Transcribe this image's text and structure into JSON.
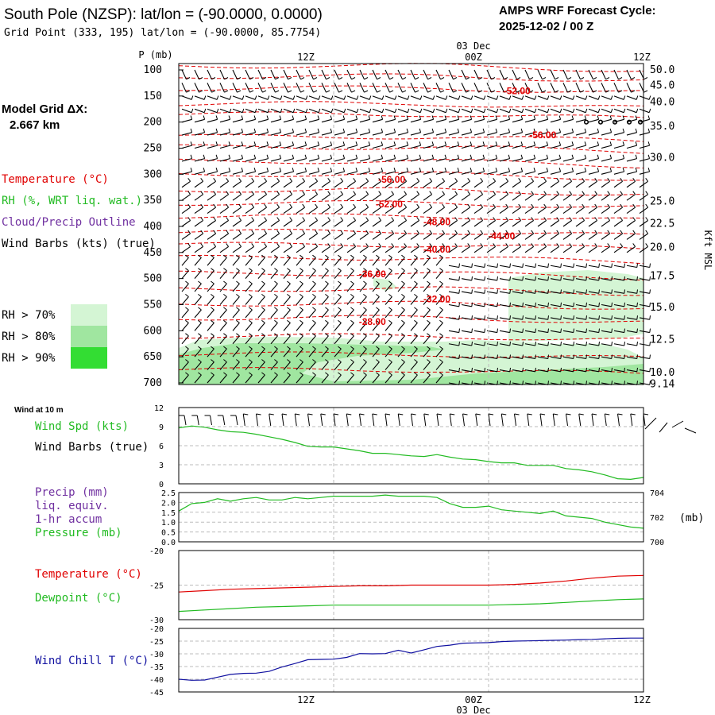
{
  "header": {
    "title": "South Pole (NZSP):  lat/lon = (-90.0000, 0.0000)",
    "subtitle": "Grid Point (333, 195) lat/lon = (-90.0000, 85.7754)",
    "cycle_title": "AMPS WRF Forecast Cycle:",
    "cycle_value": "2025-12-02 / 00  Z",
    "model_grid_label": "Model Grid ΔX:",
    "model_grid_value": "2.667 km"
  },
  "time_axis": {
    "top_date": "03 Dec",
    "bottom_date": "03 Dec",
    "ticks": [
      {
        "hour": 12,
        "label": "12Z"
      },
      {
        "hour": 24,
        "label": "00Z"
      },
      {
        "hour": 36,
        "label": "12Z"
      }
    ],
    "hours_start": 0,
    "hours_end": 36
  },
  "colors": {
    "temperature": "#e00000",
    "rh": "#22bb22",
    "cloud": "#7030a0",
    "wind_chill": "#1010a0",
    "rh70": "#d4f5d4",
    "rh80": "#a0e6a0",
    "rh90": "#33dd33",
    "axis": "#000000"
  },
  "cross_section_legend": {
    "temperature": "Temperature (°C)",
    "rh": "RH (%, WRT liq. wat.)",
    "cloud": "Cloud/Precip Outline",
    "wind": "Wind Barbs (kts) (true)",
    "rh70": "RH > 70%",
    "rh80": "RH > 80%",
    "rh90": "RH > 90%"
  },
  "chart_data": [
    {
      "type": "contour",
      "title": "Vertical time cross-section",
      "ylabel": "P (mb)",
      "y2label": "Kft MSL",
      "pressure_levels": [
        100,
        150,
        200,
        250,
        300,
        350,
        400,
        450,
        500,
        550,
        600,
        650,
        700
      ],
      "height_labels": [
        {
          "p": 100,
          "label": "50.0"
        },
        {
          "p": 130,
          "label": "45.0"
        },
        {
          "p": 162,
          "label": "40.0"
        },
        {
          "p": 208,
          "label": "35.0"
        },
        {
          "p": 268,
          "label": "30.0"
        },
        {
          "p": 352,
          "label": "25.0"
        },
        {
          "p": 395,
          "label": "22.5"
        },
        {
          "p": 440,
          "label": "20.0"
        },
        {
          "p": 495,
          "label": "17.5"
        },
        {
          "p": 555,
          "label": "15.0"
        },
        {
          "p": 617,
          "label": "12.5"
        },
        {
          "p": 680,
          "label": "10.0"
        },
        {
          "p": 702,
          "label": "9.14"
        }
      ],
      "temperature_labels": [
        {
          "hour": 26.2,
          "p": 140,
          "label": "-52.00"
        },
        {
          "hour": 28.2,
          "p": 225,
          "label": "-56.00"
        },
        {
          "hour": 16.5,
          "p": 310,
          "label": "-56.00"
        },
        {
          "hour": 16.3,
          "p": 357,
          "label": "-52.00"
        },
        {
          "hour": 20.0,
          "p": 392,
          "label": "-48.00"
        },
        {
          "hour": 25.0,
          "p": 418,
          "label": "-44.00"
        },
        {
          "hour": 20.0,
          "p": 444,
          "label": "-40.00"
        },
        {
          "hour": 15.0,
          "p": 491,
          "label": "-36.00"
        },
        {
          "hour": 20.0,
          "p": 539,
          "label": "-32.00"
        },
        {
          "hour": 15.0,
          "p": 583,
          "label": "-28.00"
        }
      ]
    },
    {
      "type": "line",
      "title": "Wind at 10 m",
      "label_speed": "Wind Spd (kts)",
      "label_barbs": "Wind Barbs (true)",
      "ylim": [
        0,
        12
      ],
      "yticks": [
        {
          "v": 0,
          "label": "0"
        },
        {
          "v": 3,
          "label": "3"
        },
        {
          "v": 6,
          "label": "6"
        },
        {
          "v": 9,
          "label": "9"
        },
        {
          "v": 12,
          "label": "12"
        }
      ],
      "x": [
        0,
        1,
        2,
        3,
        4,
        5,
        6,
        7,
        8,
        9,
        10,
        11,
        12,
        13,
        14,
        15,
        16,
        17,
        18,
        19,
        20,
        21,
        22,
        23,
        24,
        25,
        26,
        27,
        28,
        29,
        30,
        31,
        32,
        33,
        34,
        35,
        36
      ],
      "values": [
        8.8,
        9.1,
        8.9,
        8.5,
        8.2,
        8.1,
        7.8,
        7.4,
        7.0,
        6.5,
        5.9,
        5.8,
        5.8,
        5.5,
        5.2,
        4.8,
        4.8,
        4.6,
        4.4,
        4.3,
        4.6,
        4.2,
        3.9,
        3.8,
        3.5,
        3.3,
        3.3,
        2.9,
        2.9,
        2.9,
        2.4,
        2.2,
        1.9,
        1.4,
        0.8,
        0.7,
        1.0
      ]
    },
    {
      "type": "line",
      "label_precip": "Precip (mm)",
      "label_liq": "liq. equiv.",
      "label_accum": "1-hr accum",
      "label_pressure": "Pressure (mb)",
      "y2unit": "(mb)",
      "precip_ylim": [
        0,
        2.5
      ],
      "precip_ticks": [
        {
          "v": 0.0,
          "label": "0.0"
        },
        {
          "v": 0.5,
          "label": "0.5"
        },
        {
          "v": 1.0,
          "label": "1.0"
        },
        {
          "v": 1.5,
          "label": "1.5"
        },
        {
          "v": 2.0,
          "label": "2.0"
        },
        {
          "v": 2.5,
          "label": "2.5"
        }
      ],
      "pressure_ylim": [
        700,
        704
      ],
      "pressure_ticks": [
        {
          "v": 700,
          "label": "700"
        },
        {
          "v": 702,
          "label": "702"
        },
        {
          "v": 704,
          "label": "704"
        }
      ],
      "x": [
        0,
        1,
        2,
        3,
        4,
        5,
        6,
        7,
        8,
        9,
        10,
        11,
        12,
        13,
        14,
        15,
        16,
        17,
        18,
        19,
        20,
        21,
        22,
        23,
        24,
        25,
        26,
        27,
        28,
        29,
        30,
        31,
        32,
        33,
        34,
        35,
        36
      ],
      "pressure": [
        702.5,
        703.1,
        703.2,
        703.5,
        703.3,
        703.5,
        703.6,
        703.4,
        703.4,
        703.6,
        703.5,
        703.6,
        703.7,
        703.7,
        703.7,
        703.7,
        703.8,
        703.7,
        703.7,
        703.7,
        703.6,
        703.1,
        702.8,
        702.8,
        702.9,
        702.6,
        702.5,
        702.4,
        702.3,
        702.5,
        702.1,
        702.0,
        701.9,
        701.6,
        701.4,
        701.2,
        701.1
      ]
    },
    {
      "type": "line",
      "label_temperature": "Temperature (°C)",
      "label_dewpoint": "Dewpoint (°C)",
      "ylim": [
        -30,
        -20
      ],
      "yticks": [
        {
          "v": -30,
          "label": "-30"
        },
        {
          "v": -25,
          "label": "-25"
        },
        {
          "v": -20,
          "label": "-20"
        }
      ],
      "x": [
        0,
        2,
        4,
        6,
        8,
        10,
        12,
        14,
        16,
        18,
        20,
        22,
        24,
        26,
        28,
        30,
        32,
        34,
        36
      ],
      "series": [
        {
          "name": "Temperature",
          "values": [
            -26.0,
            -25.8,
            -25.6,
            -25.5,
            -25.4,
            -25.3,
            -25.2,
            -25.1,
            -25.1,
            -25.0,
            -25.0,
            -25.0,
            -25.0,
            -24.9,
            -24.7,
            -24.4,
            -24.0,
            -23.7,
            -23.6
          ]
        },
        {
          "name": "Dewpoint",
          "values": [
            -28.8,
            -28.6,
            -28.4,
            -28.2,
            -28.1,
            -28.0,
            -27.9,
            -27.9,
            -27.9,
            -27.9,
            -27.9,
            -27.9,
            -27.9,
            -27.8,
            -27.7,
            -27.5,
            -27.3,
            -27.1,
            -27.0
          ]
        }
      ]
    },
    {
      "type": "line",
      "label": "Wind Chill T (°C)",
      "ylim": [
        -45,
        -20
      ],
      "yticks": [
        {
          "v": -45,
          "label": "-45"
        },
        {
          "v": -40,
          "label": "-40"
        },
        {
          "v": -35,
          "label": "-35"
        },
        {
          "v": -30,
          "label": "-30"
        },
        {
          "v": -25,
          "label": "-25"
        },
        {
          "v": -20,
          "label": "-20"
        }
      ],
      "x": [
        0,
        1,
        2,
        3,
        4,
        5,
        6,
        7,
        8,
        9,
        10,
        11,
        12,
        13,
        14,
        15,
        16,
        17,
        18,
        19,
        20,
        21,
        22,
        23,
        24,
        25,
        26,
        27,
        28,
        29,
        30,
        31,
        32,
        33,
        34,
        35,
        36
      ],
      "values": [
        -40.0,
        -40.4,
        -40.3,
        -39.2,
        -38.1,
        -37.7,
        -37.6,
        -36.9,
        -35.2,
        -33.8,
        -32.3,
        -32.2,
        -32.1,
        -31.4,
        -29.9,
        -30.0,
        -29.9,
        -28.6,
        -29.7,
        -28.4,
        -27.1,
        -26.6,
        -25.8,
        -25.7,
        -25.6,
        -25.2,
        -25.0,
        -24.9,
        -24.8,
        -24.7,
        -24.6,
        -24.4,
        -24.3,
        -24.1,
        -23.9,
        -23.8,
        -23.8
      ]
    }
  ]
}
